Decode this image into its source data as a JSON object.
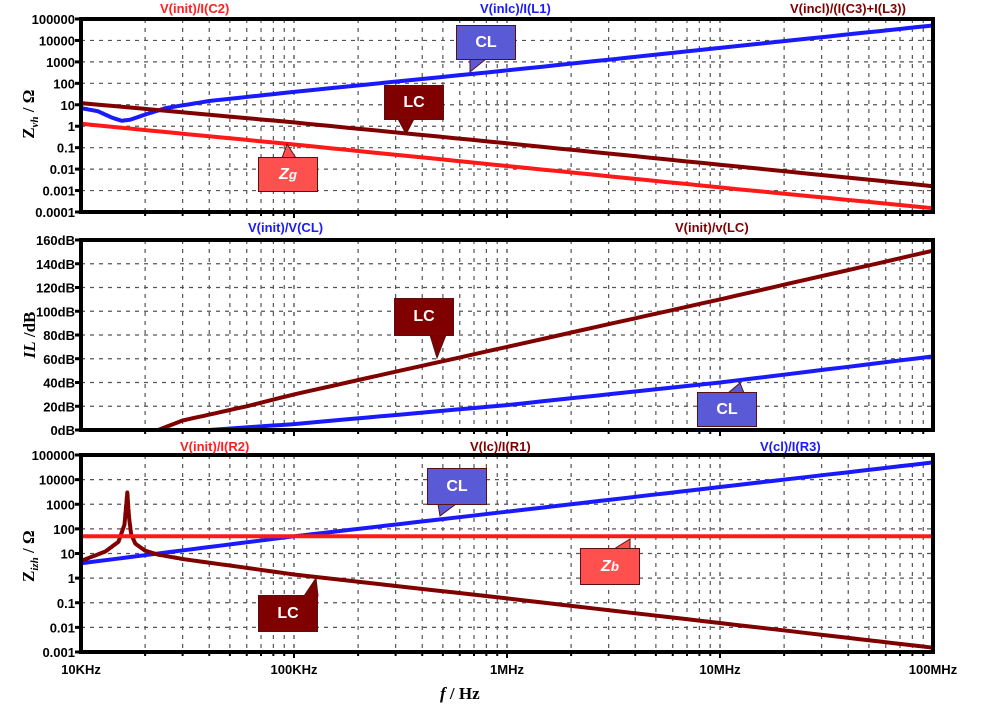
{
  "chart_data": [
    {
      "type": "line",
      "panel": "top",
      "ylabel": "Z",
      "ylabel_sub": "vh",
      "ylabel_unit": " / Ω",
      "yscale": "log",
      "ylim": [
        0.0001,
        100000
      ],
      "yticks": [
        "100000",
        "10000",
        "1000",
        "100",
        "10",
        "1",
        "0.1",
        "0.01",
        "0.001",
        "0.0001"
      ],
      "xscale": "log",
      "xlim": [
        10000,
        100000000
      ],
      "titles": [
        {
          "text": "V(init)/I(C2)",
          "color": "#ff2020"
        },
        {
          "text": "V(inlc)/I(L1)",
          "color": "#1a1aff"
        },
        {
          "text": "V(incl)/(I(C3)+I(L3))",
          "color": "#800000"
        }
      ],
      "series": [
        {
          "name": "CL",
          "color": "#1a1aff",
          "x": [
            10000,
            12000,
            14000,
            15500,
            17000,
            20000,
            25000,
            40000,
            100000,
            1000000,
            10000000,
            100000000
          ],
          "y": [
            7,
            5,
            2.5,
            1.8,
            2,
            3.5,
            7,
            15,
            40,
            400,
            4500,
            50000
          ]
        },
        {
          "name": "LC",
          "color": "#800000",
          "x": [
            10000,
            100000,
            1000000,
            10000000,
            100000000
          ],
          "y": [
            12,
            1.5,
            0.16,
            0.016,
            0.0016
          ]
        },
        {
          "name": "Zg",
          "color": "#ff1a1a",
          "x": [
            10000,
            100000,
            1000000,
            10000000,
            100000000
          ],
          "y": [
            1.3,
            0.14,
            0.014,
            0.0014,
            0.00015
          ]
        }
      ],
      "callouts": [
        {
          "text": "CL",
          "color": "#5a5ad6"
        },
        {
          "text": "LC",
          "color": "#800000"
        },
        {
          "text": "Zg",
          "sub": "g",
          "color": "#ff5050"
        }
      ]
    },
    {
      "type": "line",
      "panel": "middle",
      "ylabel": "IL",
      "ylabel_unit": " /dB",
      "yscale": "linear",
      "ylim": [
        0,
        160
      ],
      "yticks": [
        "160dB",
        "140dB",
        "120dB",
        "100dB",
        "80dB",
        "60dB",
        "40dB",
        "20dB",
        "0dB"
      ],
      "xscale": "log",
      "xlim": [
        10000,
        100000000
      ],
      "titles": [
        {
          "text": "V(init)/V(CL)",
          "color": "#1a1aff"
        },
        {
          "text": "V(init)/v(LC)",
          "color": "#800000"
        }
      ],
      "series": [
        {
          "name": "LC",
          "color": "#800000",
          "x": [
            10000,
            23000,
            30000,
            60000,
            100000,
            1000000,
            10000000,
            100000000
          ],
          "y": [
            0,
            0,
            8,
            20,
            30,
            70,
            110,
            151
          ]
        },
        {
          "name": "CL",
          "color": "#1a1aff",
          "x": [
            10000,
            40000,
            100000,
            1000000,
            10000000,
            100000000
          ],
          "y": [
            0,
            0,
            5,
            21,
            40,
            62
          ]
        }
      ],
      "callouts": [
        {
          "text": "LC",
          "color": "#800000"
        },
        {
          "text": "CL",
          "color": "#5a5ad6"
        }
      ]
    },
    {
      "type": "line",
      "panel": "bottom",
      "ylabel": "Z",
      "ylabel_sub": "izh",
      "ylabel_unit": " / Ω",
      "yscale": "log",
      "ylim": [
        0.001,
        100000
      ],
      "yticks": [
        "100000",
        "10000",
        "1000",
        "100",
        "10",
        "1",
        "0.1",
        "0.01",
        "0.001"
      ],
      "xscale": "log",
      "xlim": [
        10000,
        100000000
      ],
      "xticks": [
        "10KHz",
        "100KHz",
        "1MHz",
        "10MHz",
        "100MHz"
      ],
      "xlabel": "f",
      "xlabel_unit": " / Hz",
      "titles": [
        {
          "text": "V(init)/I(R2)",
          "color": "#ff2020"
        },
        {
          "text": "V(lc)/I(R1)",
          "color": "#800000"
        },
        {
          "text": "V(cl)/I(R3)",
          "color": "#1a1aff"
        }
      ],
      "series": [
        {
          "name": "CL",
          "color": "#1a1aff",
          "x": [
            10000,
            100000,
            1000000,
            10000000,
            100000000
          ],
          "y": [
            4,
            50,
            500,
            5000,
            50000
          ]
        },
        {
          "name": "LC",
          "color": "#800000",
          "x": [
            10000,
            13000,
            15000,
            16000,
            16500,
            16800,
            17200,
            18000,
            20000,
            23000,
            30000,
            100000,
            1000000,
            10000000,
            100000000
          ],
          "y": [
            5,
            12,
            30,
            150,
            3000,
            300,
            60,
            25,
            13,
            9,
            6,
            1.4,
            0.15,
            0.015,
            0.0015
          ]
        },
        {
          "name": "Zb",
          "color": "#ff1a1a",
          "x": [
            10000,
            100000000
          ],
          "y": [
            50,
            50
          ]
        }
      ],
      "callouts": [
        {
          "text": "CL",
          "color": "#5a5ad6"
        },
        {
          "text": "Zb",
          "sub": "b",
          "color": "#ff5050"
        },
        {
          "text": "LC",
          "color": "#800000"
        }
      ]
    }
  ]
}
